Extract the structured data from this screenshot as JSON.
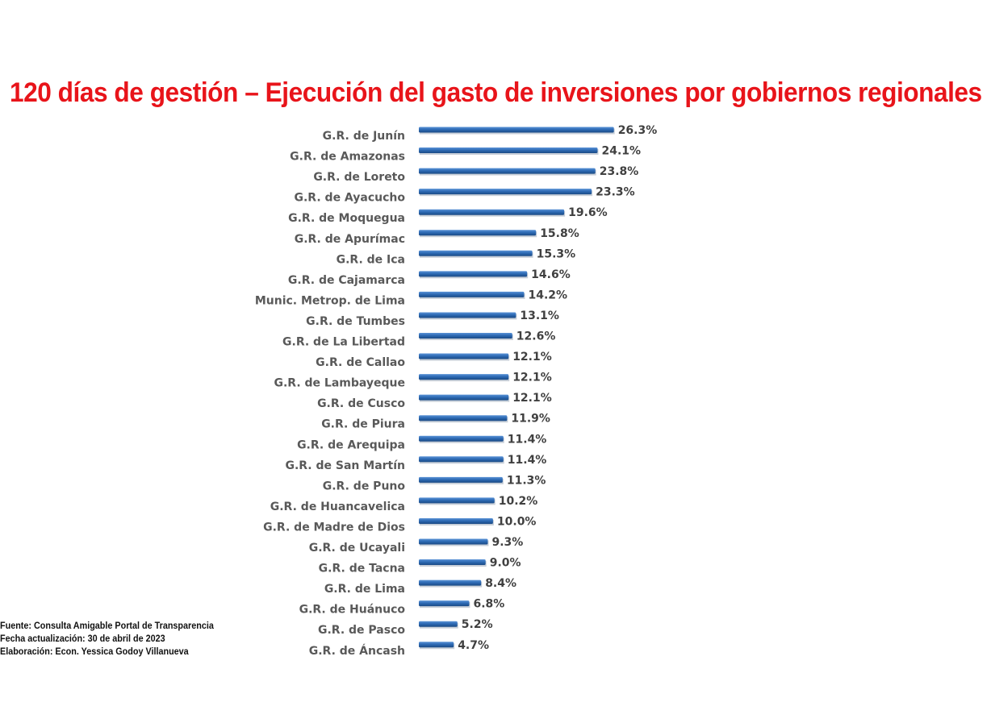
{
  "title": "120 días de gestión – Ejecución del gasto de inversiones por gobiernos regionales",
  "notes": {
    "source": "Fuente: Consulta Amigable Portal de Transparencia",
    "date": "Fecha actualización: 30 de abril de 2023",
    "author": "Elaboración: Econ. Yessica Godoy Villanueva"
  },
  "colors": {
    "title": "#e8141a",
    "bar": "#2e6bb5",
    "bar_dark": "#1a4a85"
  },
  "chart_data": {
    "type": "bar",
    "orientation": "horizontal",
    "categories": [
      "G.R. de Junín",
      "G.R. de Amazonas",
      "G.R. de Loreto",
      "G.R. de Ayacucho",
      "G.R. de Moquegua",
      "G.R. de Apurímac",
      "G.R. de Ica",
      "G.R. de Cajamarca",
      "Munic. Metrop. de Lima",
      "G.R. de Tumbes",
      "G.R. de La Libertad",
      "G.R. de Callao",
      "G.R. de Lambayeque",
      "G.R. de Cusco",
      "G.R. de Piura",
      "G.R. de Arequipa",
      "G.R. de San Martín",
      "G.R. de Puno",
      "G.R. de Huancavelica",
      "G.R. de Madre de Dios",
      "G.R. de Ucayali",
      "G.R. de Tacna",
      "G.R. de Lima",
      "G.R. de Huánuco",
      "G.R. de Pasco",
      "G.R. de Áncash"
    ],
    "values": [
      26.3,
      24.1,
      23.8,
      23.3,
      19.6,
      15.8,
      15.3,
      14.6,
      14.2,
      13.1,
      12.6,
      12.1,
      12.1,
      12.1,
      11.9,
      11.4,
      11.4,
      11.3,
      10.2,
      10.0,
      9.3,
      9.0,
      8.4,
      6.8,
      5.2,
      4.7
    ],
    "value_labels": [
      "26.3%",
      "24.1%",
      "23.8%",
      "23.3%",
      "19.6%",
      "15.8%",
      "15.3%",
      "14.6%",
      "14.2%",
      "13.1%",
      "12.6%",
      "12.1%",
      "12.1%",
      "12.1%",
      "11.9%",
      "11.4%",
      "11.4%",
      "11.3%",
      "10.2%",
      "10.0%",
      "9.3%",
      "9.0%",
      "8.4%",
      "6.8%",
      "5.2%",
      "4.7%"
    ],
    "unit": "%",
    "xlim": [
      0,
      30
    ],
    "grid": false,
    "legend": "none"
  }
}
